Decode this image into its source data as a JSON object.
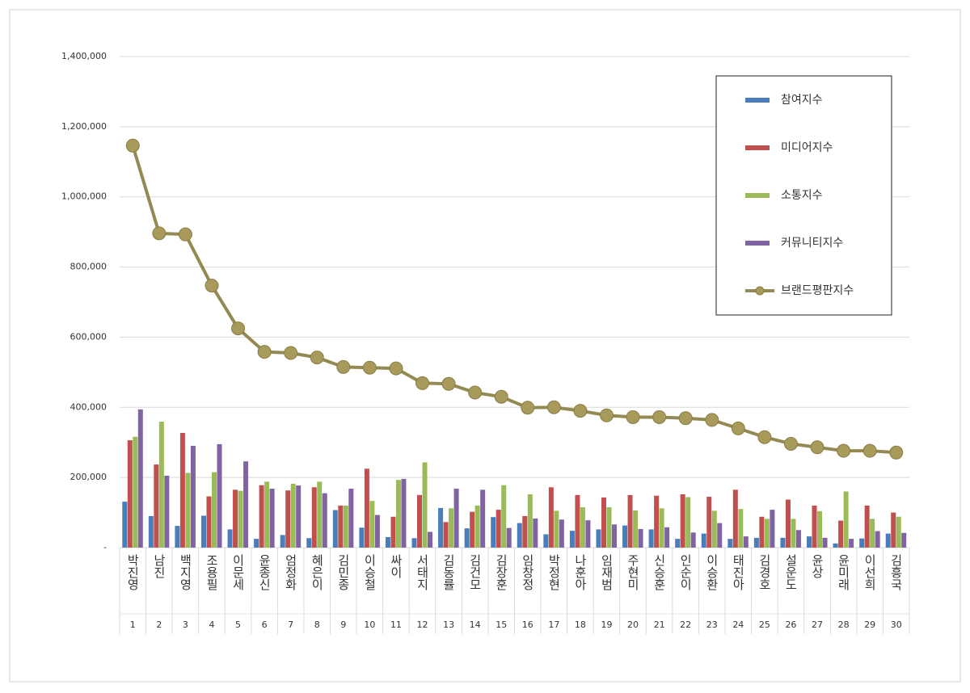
{
  "chart_data": {
    "type": "bar+line",
    "categories": [
      "박진영",
      "남진",
      "백지영",
      "조용필",
      "이문세",
      "윤종신",
      "엄정화",
      "혜은이",
      "김민종",
      "이승철",
      "싸이",
      "서태지",
      "김동률",
      "김건모",
      "김장훈",
      "임창정",
      "박정현",
      "나훈아",
      "임재범",
      "주현미",
      "신승훈",
      "인순이",
      "이승환",
      "태진아",
      "김경호",
      "설운도",
      "윤상",
      "윤미래",
      "이선희",
      "김흥국"
    ],
    "ranks": [
      1,
      2,
      3,
      4,
      5,
      6,
      7,
      8,
      9,
      10,
      11,
      12,
      13,
      14,
      15,
      16,
      17,
      18,
      19,
      20,
      21,
      22,
      23,
      24,
      25,
      26,
      27,
      28,
      29,
      30
    ],
    "series": [
      {
        "name": "참여지수",
        "type": "bar",
        "color": "#4a7ebb",
        "values": [
          131000,
          90000,
          62000,
          91000,
          52000,
          25000,
          36000,
          27000,
          107000,
          57000,
          30000,
          27000,
          113000,
          55000,
          87000,
          70000,
          38000,
          48000,
          52000,
          63000,
          52000,
          25000,
          40000,
          25000,
          28000,
          28000,
          32000,
          12000,
          26000,
          40000
        ]
      },
      {
        "name": "미디어지수",
        "type": "bar",
        "color": "#c0504d",
        "values": [
          306000,
          237000,
          327000,
          146000,
          165000,
          178000,
          163000,
          172000,
          120000,
          225000,
          88000,
          150000,
          73000,
          102000,
          108000,
          90000,
          172000,
          150000,
          143000,
          150000,
          148000,
          152000,
          145000,
          165000,
          88000,
          137000,
          120000,
          77000,
          120000,
          100000
        ]
      },
      {
        "name": "소통지수",
        "type": "bar",
        "color": "#9bbb59",
        "values": [
          316000,
          359000,
          213000,
          215000,
          162000,
          188000,
          182000,
          188000,
          120000,
          133000,
          193000,
          243000,
          112000,
          120000,
          178000,
          152000,
          105000,
          115000,
          115000,
          106000,
          112000,
          144000,
          105000,
          110000,
          82000,
          82000,
          104000,
          160000,
          82000,
          88000
        ]
      },
      {
        "name": "커뮤니티지수",
        "type": "bar",
        "color": "#8064a2",
        "values": [
          394000,
          205000,
          290000,
          295000,
          246000,
          168000,
          177000,
          155000,
          168000,
          93000,
          196000,
          45000,
          168000,
          165000,
          56000,
          83000,
          80000,
          78000,
          66000,
          53000,
          58000,
          43000,
          70000,
          32000,
          108000,
          50000,
          28000,
          25000,
          47000,
          42000
        ]
      },
      {
        "name": "브랜드평판지수",
        "type": "line",
        "color": "#938953",
        "values": [
          1146000,
          896000,
          893000,
          747000,
          625000,
          558000,
          555000,
          542000,
          515000,
          513000,
          511000,
          469000,
          467000,
          442000,
          430000,
          399000,
          400000,
          390000,
          377000,
          372000,
          372000,
          369000,
          364000,
          340000,
          315000,
          296000,
          286000,
          276000,
          276000,
          271000
        ]
      }
    ],
    "ylim": [
      0,
      1400000
    ],
    "yticks": [
      {
        "value": 0,
        "label": "-"
      },
      {
        "value": 200000,
        "label": "200,000"
      },
      {
        "value": 400000,
        "label": "400,000"
      },
      {
        "value": 600000,
        "label": "600,000"
      },
      {
        "value": 800000,
        "label": "800,000"
      },
      {
        "value": 1000000,
        "label": "1,000,000"
      },
      {
        "value": 1200000,
        "label": "1,200,000"
      },
      {
        "value": 1400000,
        "label": "1,400,000"
      }
    ],
    "grid": true,
    "legend": "upper right"
  }
}
